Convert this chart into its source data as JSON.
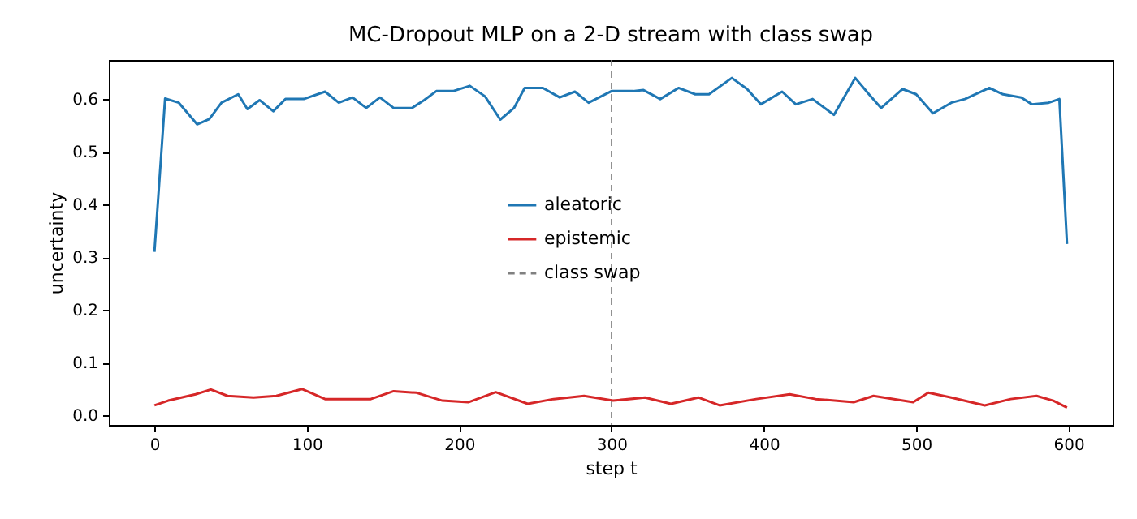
{
  "chart_data": {
    "type": "line",
    "title": "MC-Dropout MLP on a 2-D stream with class swap",
    "xlabel": "step t",
    "ylabel": "uncertainty",
    "xlim": [
      -29.95,
      628.95
    ],
    "xticks": [
      0,
      100,
      200,
      300,
      400,
      500,
      600
    ],
    "ylim": [
      -0.018,
      0.674
    ],
    "yticks": [
      {
        "value": 0,
        "label": "0.0"
      },
      0.1,
      0.2,
      0.3,
      0.4,
      0.5,
      0.6
    ],
    "grid": false,
    "legend": "center",
    "line_style": "solid",
    "marker": "none",
    "series": [
      {
        "name": "aleatoric",
        "color": "#1f77b4",
        "x": [
          0,
          7,
          16,
          28,
          36,
          44,
          55,
          61,
          69,
          78,
          86,
          98,
          112,
          121,
          130,
          139,
          148,
          157,
          169,
          177,
          185,
          196,
          207,
          217,
          227,
          236,
          243,
          255,
          266,
          276,
          285,
          300,
          314,
          321,
          332,
          344,
          355,
          364,
          379,
          389,
          398,
          412,
          421,
          432,
          446,
          460,
          469,
          477,
          491,
          500,
          511,
          523,
          532,
          548,
          557,
          569,
          576,
          587,
          594,
          599
        ],
        "values": [
          0.31,
          0.601,
          0.593,
          0.552,
          0.562,
          0.593,
          0.609,
          0.581,
          0.598,
          0.577,
          0.6,
          0.6,
          0.614,
          0.593,
          0.603,
          0.583,
          0.603,
          0.583,
          0.583,
          0.598,
          0.615,
          0.615,
          0.625,
          0.605,
          0.561,
          0.583,
          0.621,
          0.621,
          0.603,
          0.614,
          0.593,
          0.615,
          0.615,
          0.617,
          0.6,
          0.621,
          0.609,
          0.609,
          0.64,
          0.619,
          0.59,
          0.614,
          0.59,
          0.6,
          0.57,
          0.64,
          0.609,
          0.583,
          0.619,
          0.609,
          0.573,
          0.593,
          0.6,
          0.621,
          0.609,
          0.603,
          0.59,
          0.593,
          0.6,
          0.325
        ]
      },
      {
        "name": "epistemic",
        "color": "#d62728",
        "x": [
          0,
          9,
          27,
          37,
          48,
          65,
          80,
          97,
          112,
          142,
          157,
          172,
          189,
          206,
          224,
          245,
          262,
          282,
          301,
          322,
          339,
          357,
          371,
          395,
          417,
          434,
          459,
          472,
          498,
          508,
          523,
          545,
          562,
          579,
          590,
          599
        ],
        "values": [
          0.019,
          0.028,
          0.04,
          0.049,
          0.037,
          0.034,
          0.037,
          0.05,
          0.031,
          0.031,
          0.046,
          0.043,
          0.028,
          0.025,
          0.044,
          0.022,
          0.031,
          0.037,
          0.028,
          0.034,
          0.022,
          0.034,
          0.019,
          0.031,
          0.04,
          0.031,
          0.025,
          0.037,
          0.025,
          0.043,
          0.034,
          0.019,
          0.031,
          0.037,
          0.028,
          0.015
        ]
      }
    ],
    "ref_lines": [
      {
        "axis": "x",
        "value": 300,
        "label": "class swap",
        "color": "#808080",
        "line_style": "dashed"
      }
    ]
  }
}
